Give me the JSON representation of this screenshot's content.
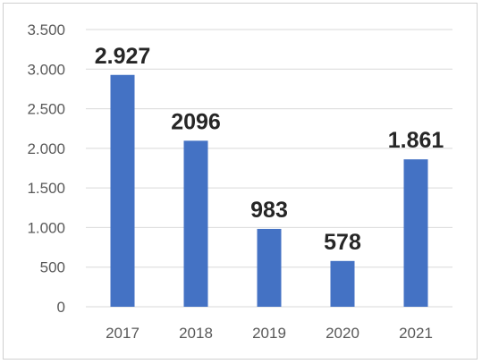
{
  "chart_data": {
    "type": "bar",
    "categories": [
      "2017",
      "2018",
      "2019",
      "2020",
      "2021"
    ],
    "values": [
      2927,
      2096,
      983,
      578,
      1861
    ],
    "data_labels": [
      "2.927",
      "2096",
      "983",
      "578",
      "1.861"
    ],
    "ylim": [
      0,
      3500
    ],
    "yticks": [
      0,
      500,
      1000,
      1500,
      2000,
      2500,
      3000,
      3500
    ],
    "ytick_labels": [
      "0",
      "500",
      "1.000",
      "1.500",
      "2.000",
      "2.500",
      "3.000",
      "3.500"
    ],
    "title": "",
    "xlabel": "",
    "ylabel": "",
    "grid": true,
    "legend": false,
    "bar_color": "#4472c4",
    "grid_color": "#d9d9d9"
  }
}
